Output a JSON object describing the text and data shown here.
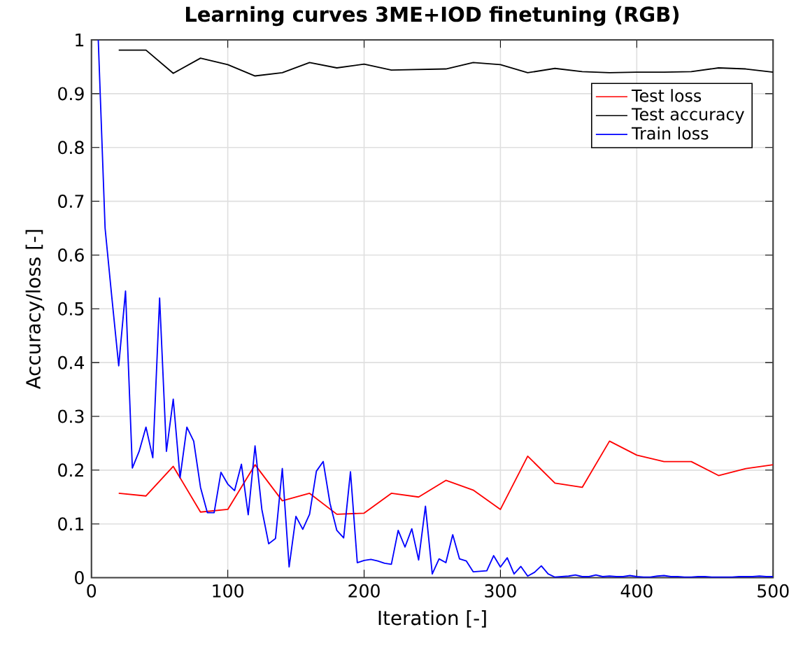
{
  "chart_data": {
    "type": "line",
    "title": "Learning curves 3ME+IOD finetuning (RGB)",
    "xlabel": "Iteration [-]",
    "ylabel": "Accuracy/loss [-]",
    "xlim": [
      0,
      500
    ],
    "xticks": [
      0,
      100,
      200,
      300,
      400,
      500
    ],
    "ylim": [
      0,
      1
    ],
    "yticks": [
      0,
      0.1,
      0.2,
      0.3,
      0.4,
      0.5,
      0.6,
      0.7,
      0.8,
      0.9,
      1
    ],
    "grid": true,
    "legend": "top right",
    "marker": "none",
    "line_style": "solid",
    "series": [
      {
        "name": "Test loss",
        "color": "#ff0000",
        "x": [
          20,
          40,
          60,
          80,
          100,
          120,
          140,
          160,
          180,
          200,
          220,
          240,
          260,
          280,
          300,
          320,
          340,
          360,
          380,
          400,
          420,
          440,
          460,
          480,
          500
        ],
        "values": [
          0.157,
          0.152,
          0.207,
          0.122,
          0.127,
          0.21,
          0.143,
          0.157,
          0.118,
          0.12,
          0.157,
          0.15,
          0.181,
          0.163,
          0.127,
          0.226,
          0.176,
          0.168,
          0.254,
          0.228,
          0.216,
          0.216,
          0.19,
          0.203,
          0.21
        ]
      },
      {
        "name": "Test accuracy",
        "color": "#000000",
        "x": [
          20,
          40,
          60,
          80,
          100,
          120,
          140,
          160,
          180,
          200,
          220,
          240,
          260,
          280,
          300,
          320,
          340,
          360,
          380,
          400,
          420,
          440,
          460,
          480,
          500
        ],
        "values": [
          0.981,
          0.981,
          0.938,
          0.966,
          0.954,
          0.933,
          0.939,
          0.958,
          0.948,
          0.955,
          0.944,
          0.945,
          0.946,
          0.958,
          0.954,
          0.939,
          0.947,
          0.941,
          0.939,
          0.94,
          0.94,
          0.941,
          0.948,
          0.946,
          0.94
        ]
      },
      {
        "name": "Train loss",
        "color": "#0000ff",
        "x": [
          5,
          10,
          15,
          20,
          25,
          30,
          35,
          40,
          45,
          50,
          55,
          60,
          65,
          70,
          75,
          80,
          85,
          90,
          95,
          100,
          105,
          110,
          115,
          120,
          125,
          130,
          135,
          140,
          145,
          150,
          155,
          160,
          165,
          170,
          175,
          180,
          185,
          190,
          195,
          200,
          205,
          210,
          215,
          220,
          225,
          230,
          235,
          240,
          245,
          250,
          255,
          260,
          265,
          270,
          275,
          280,
          285,
          290,
          295,
          300,
          305,
          310,
          315,
          320,
          325,
          330,
          335,
          340,
          345,
          350,
          355,
          360,
          365,
          370,
          375,
          380,
          385,
          390,
          395,
          400,
          405,
          410,
          415,
          420,
          425,
          430,
          435,
          440,
          445,
          450,
          455,
          460,
          465,
          470,
          475,
          480,
          485,
          490,
          495,
          500
        ],
        "values": [
          1.0,
          0.65,
          0.52,
          0.394,
          0.533,
          0.204,
          0.235,
          0.28,
          0.223,
          0.52,
          0.235,
          0.332,
          0.186,
          0.28,
          0.254,
          0.168,
          0.121,
          0.121,
          0.196,
          0.174,
          0.162,
          0.211,
          0.117,
          0.245,
          0.127,
          0.063,
          0.073,
          0.203,
          0.02,
          0.114,
          0.09,
          0.118,
          0.198,
          0.216,
          0.138,
          0.088,
          0.074,
          0.197,
          0.028,
          0.032,
          0.034,
          0.031,
          0.027,
          0.025,
          0.088,
          0.057,
          0.091,
          0.033,
          0.133,
          0.007,
          0.035,
          0.028,
          0.08,
          0.035,
          0.031,
          0.011,
          0.012,
          0.013,
          0.041,
          0.02,
          0.037,
          0.007,
          0.021,
          0.003,
          0.01,
          0.022,
          0.007,
          0.001,
          0.002,
          0.003,
          0.005,
          0.002,
          0.002,
          0.005,
          0.002,
          0.003,
          0.002,
          0.002,
          0.004,
          0.002,
          0.001,
          0.001,
          0.003,
          0.004,
          0.002,
          0.002,
          0.001,
          0.001,
          0.002,
          0.002,
          0.001,
          0.001,
          0.001,
          0.001,
          0.002,
          0.002,
          0.002,
          0.003,
          0.002,
          0.002
        ]
      }
    ]
  }
}
